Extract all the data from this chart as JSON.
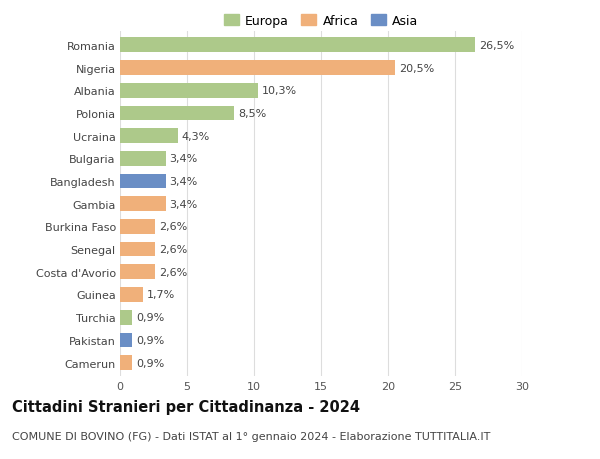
{
  "countries": [
    "Romania",
    "Nigeria",
    "Albania",
    "Polonia",
    "Ucraina",
    "Bulgaria",
    "Bangladesh",
    "Gambia",
    "Burkina Faso",
    "Senegal",
    "Costa d'Avorio",
    "Guinea",
    "Turchia",
    "Pakistan",
    "Camerun"
  ],
  "values": [
    26.5,
    20.5,
    10.3,
    8.5,
    4.3,
    3.4,
    3.4,
    3.4,
    2.6,
    2.6,
    2.6,
    1.7,
    0.9,
    0.9,
    0.9
  ],
  "labels": [
    "26,5%",
    "20,5%",
    "10,3%",
    "8,5%",
    "4,3%",
    "3,4%",
    "3,4%",
    "3,4%",
    "2,6%",
    "2,6%",
    "2,6%",
    "1,7%",
    "0,9%",
    "0,9%",
    "0,9%"
  ],
  "continents": [
    "Europa",
    "Africa",
    "Europa",
    "Europa",
    "Europa",
    "Europa",
    "Asia",
    "Africa",
    "Africa",
    "Africa",
    "Africa",
    "Africa",
    "Europa",
    "Asia",
    "Africa"
  ],
  "colors": {
    "Europa": "#adc98a",
    "Africa": "#f0b07a",
    "Asia": "#6a8ec5"
  },
  "legend_order": [
    "Europa",
    "Africa",
    "Asia"
  ],
  "xlim": [
    0,
    30
  ],
  "xticks": [
    0,
    5,
    10,
    15,
    20,
    25,
    30
  ],
  "title": "Cittadini Stranieri per Cittadinanza - 2024",
  "subtitle": "COMUNE DI BOVINO (FG) - Dati ISTAT al 1° gennaio 2024 - Elaborazione TUTTITALIA.IT",
  "background_color": "#ffffff",
  "grid_color": "#dddddd",
  "bar_height": 0.65,
  "label_fontsize": 8,
  "tick_fontsize": 8,
  "title_fontsize": 10.5,
  "subtitle_fontsize": 8
}
